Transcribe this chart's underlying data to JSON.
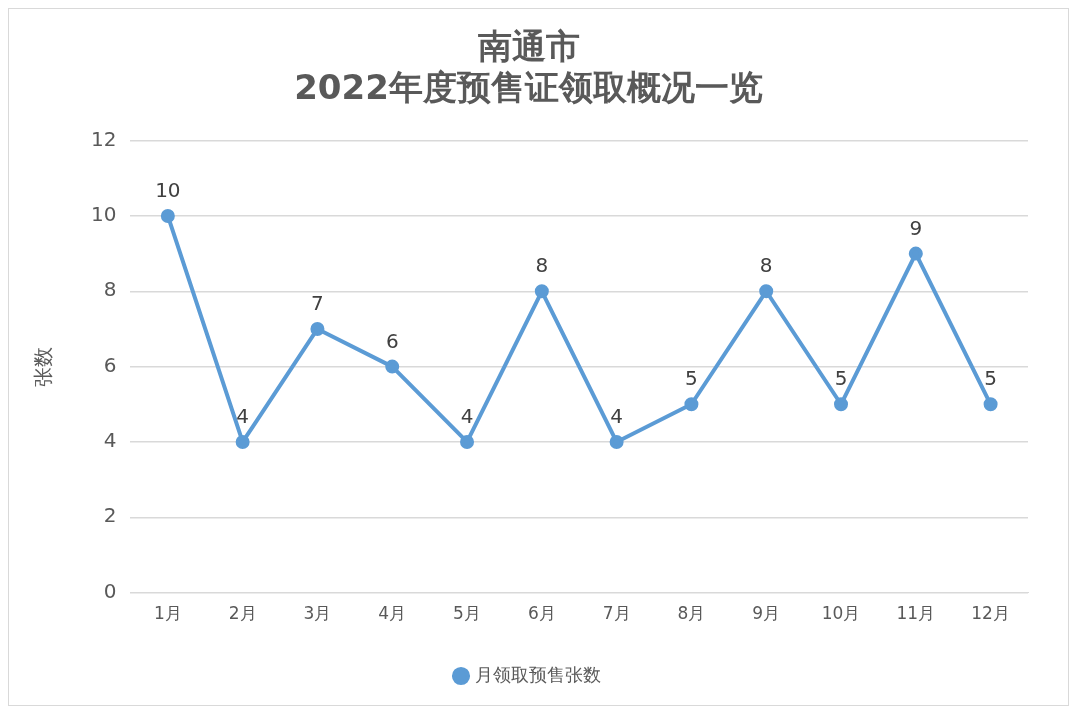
{
  "chart_data": {
    "type": "line",
    "title": "南通市\n2022年度预售证领取概况一览",
    "ylabel": "张数",
    "categories": [
      "1月",
      "2月",
      "3月",
      "4月",
      "5月",
      "6月",
      "7月",
      "8月",
      "9月",
      "10月",
      "11月",
      "12月"
    ],
    "series": [
      {
        "name": "月领取预售张数",
        "color": "#5b9bd5",
        "values": [
          10,
          4,
          7,
          6,
          4,
          8,
          4,
          5,
          8,
          5,
          9,
          5
        ]
      }
    ],
    "ylim": [
      0,
      12
    ],
    "yticks": [
      0,
      2,
      4,
      6,
      8,
      10,
      12
    ],
    "grid": "y",
    "legend": "bottom",
    "marker": "circle",
    "line_style": "solid",
    "data_labels": true
  }
}
